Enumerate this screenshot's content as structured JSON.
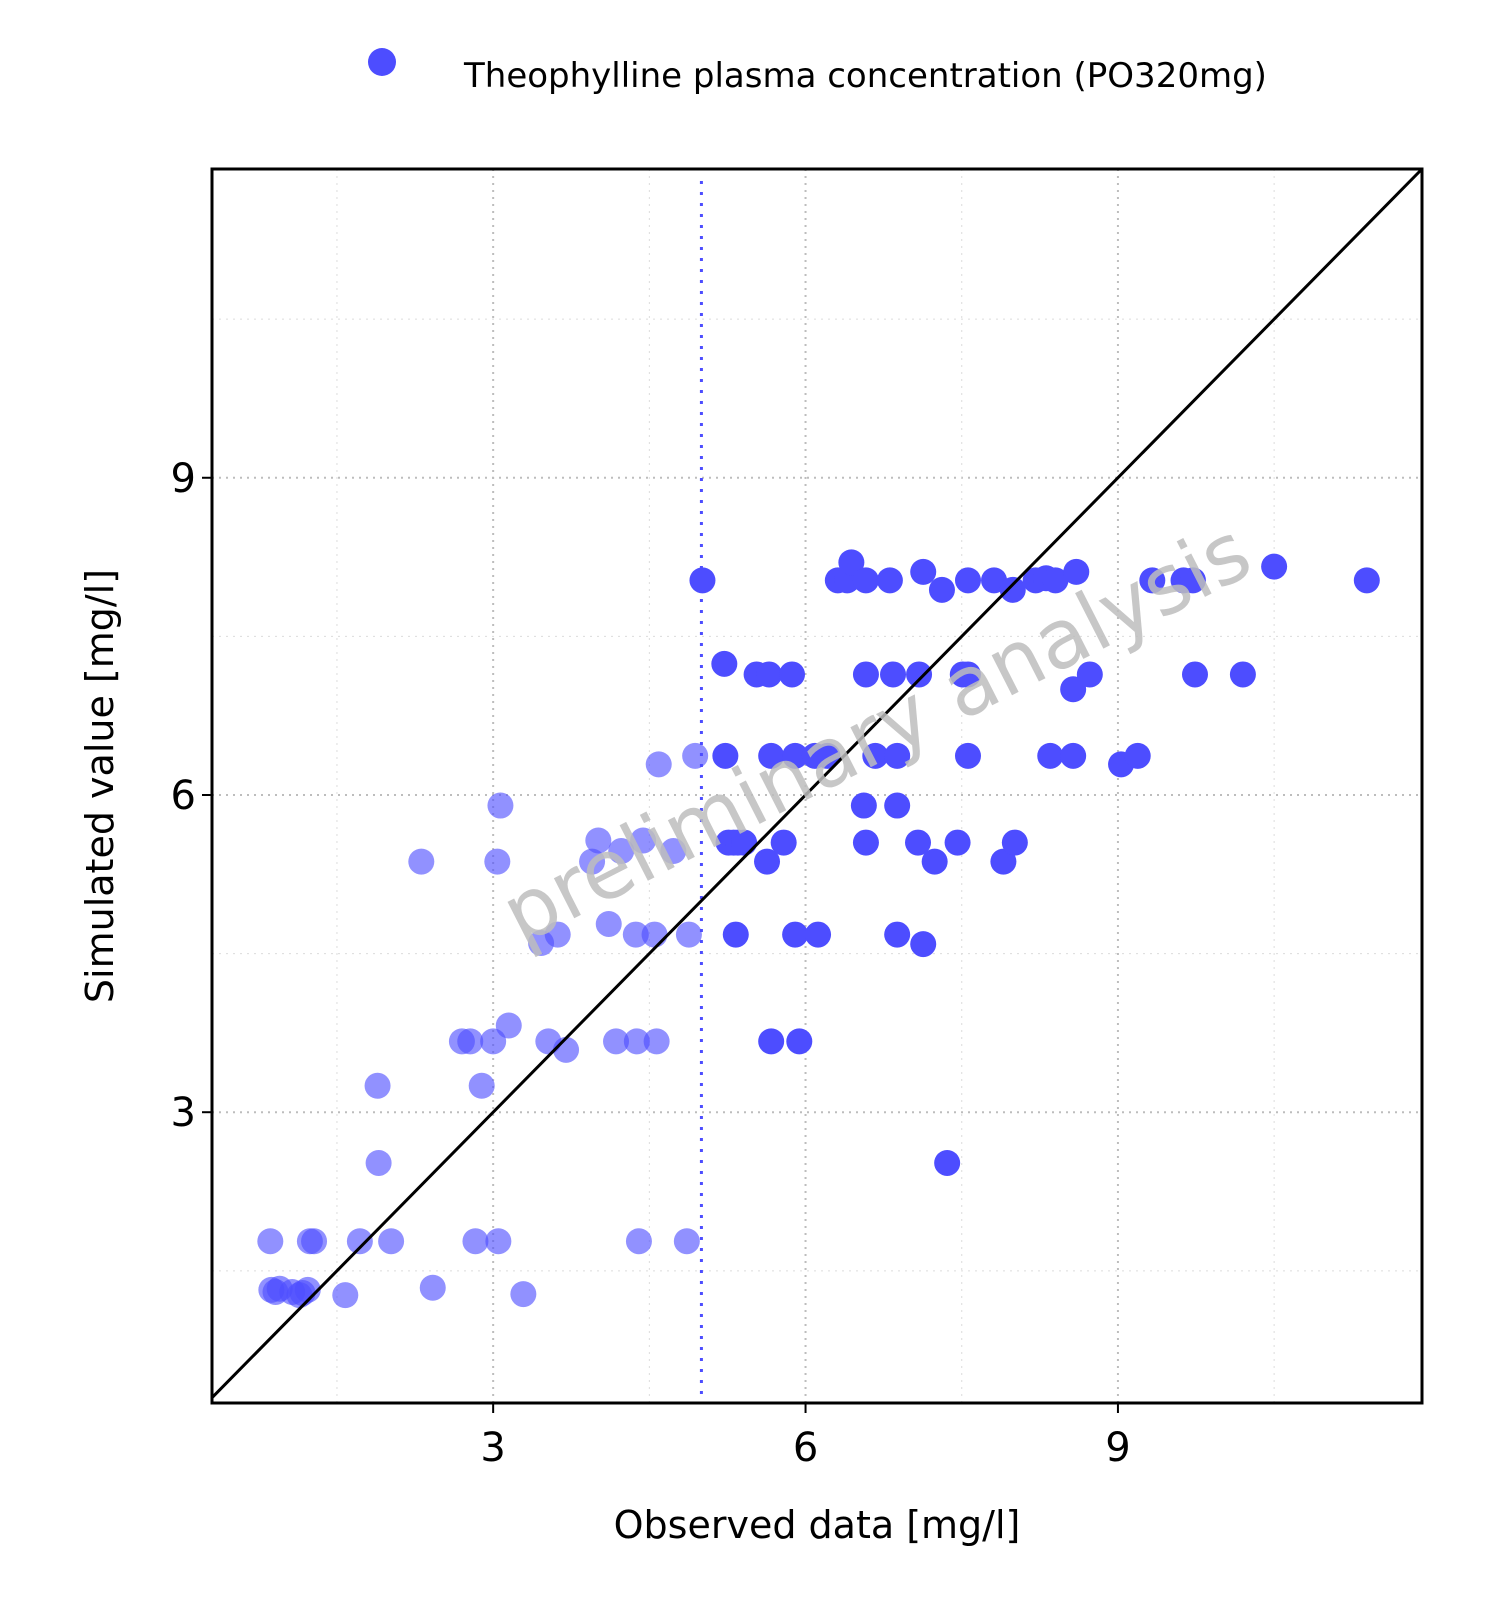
{
  "chart_data": {
    "type": "scatter",
    "title": "",
    "legend": {
      "position": "top",
      "entries": [
        {
          "label": "Theophylline plasma concentration (PO320mg)",
          "color": "#4d4dff",
          "marker": "circle"
        }
      ]
    },
    "xlabel": "Observed data [mg/l]",
    "ylabel": "Simulated value [mg/l]",
    "xlim": [
      0.3,
      11.92
    ],
    "ylim": [
      0.25,
      11.92
    ],
    "xticks": [
      3,
      6,
      9
    ],
    "yticks": [
      3,
      6,
      9
    ],
    "xtick_labels": [
      "3",
      "6",
      "9"
    ],
    "ytick_labels": [
      "3",
      "6",
      "9"
    ],
    "minor_gridlines": [
      1.5,
      4.5,
      7.5,
      10.5
    ],
    "grid": true,
    "identity_line": true,
    "lloq": {
      "x": 5.0,
      "style": "dotted",
      "color": "#4d4dff"
    },
    "watermark": "preliminary analysis",
    "marker_color": "#4d4dff",
    "series": [
      {
        "name": "Theophylline plasma concentration (PO320mg)",
        "below_lloq_opacity": 0.62,
        "points": [
          [
            0.86,
            1.78
          ],
          [
            0.87,
            1.32
          ],
          [
            0.91,
            1.3
          ],
          [
            0.95,
            1.33
          ],
          [
            1.07,
            1.3
          ],
          [
            1.14,
            1.27
          ],
          [
            1.17,
            1.29
          ],
          [
            1.22,
            1.32
          ],
          [
            1.24,
            1.78
          ],
          [
            1.28,
            1.78
          ],
          [
            1.58,
            1.27
          ],
          [
            1.72,
            1.78
          ],
          [
            1.9,
            2.52
          ],
          [
            2.02,
            1.78
          ],
          [
            2.31,
            5.37
          ],
          [
            2.42,
            1.34
          ],
          [
            1.89,
            3.25
          ],
          [
            2.7,
            3.67
          ],
          [
            2.78,
            3.67
          ],
          [
            2.83,
            1.78
          ],
          [
            2.89,
            3.25
          ],
          [
            3.0,
            3.67
          ],
          [
            3.04,
            5.37
          ],
          [
            3.05,
            1.78
          ],
          [
            3.07,
            5.9
          ],
          [
            3.15,
            3.82
          ],
          [
            3.29,
            1.28
          ],
          [
            3.46,
            4.6
          ],
          [
            3.53,
            3.67
          ],
          [
            3.62,
            4.68
          ],
          [
            3.7,
            3.59
          ],
          [
            3.95,
            5.37
          ],
          [
            4.01,
            5.57
          ],
          [
            4.11,
            4.78
          ],
          [
            4.18,
            3.67
          ],
          [
            4.23,
            5.47
          ],
          [
            4.37,
            4.68
          ],
          [
            4.38,
            3.67
          ],
          [
            4.4,
            1.78
          ],
          [
            4.44,
            5.57
          ],
          [
            4.55,
            4.68
          ],
          [
            4.57,
            3.67
          ],
          [
            4.59,
            6.29
          ],
          [
            4.73,
            5.47
          ],
          [
            4.88,
            4.68
          ],
          [
            4.86,
            1.78
          ],
          [
            4.94,
            6.37
          ],
          [
            5.01,
            8.03
          ],
          [
            5.22,
            7.24
          ],
          [
            5.23,
            6.37
          ],
          [
            5.26,
            5.55
          ],
          [
            5.31,
            5.55
          ],
          [
            5.35,
            5.55
          ],
          [
            5.41,
            5.55
          ],
          [
            5.33,
            4.68
          ],
          [
            5.53,
            7.14
          ],
          [
            5.65,
            7.14
          ],
          [
            5.63,
            5.37
          ],
          [
            5.67,
            3.67
          ],
          [
            5.67,
            6.37
          ],
          [
            5.79,
            5.55
          ],
          [
            5.87,
            7.14
          ],
          [
            5.9,
            4.68
          ],
          [
            5.9,
            6.37
          ],
          [
            5.94,
            3.67
          ],
          [
            6.09,
            6.37
          ],
          [
            6.12,
            4.68
          ],
          [
            6.21,
            6.37
          ],
          [
            6.31,
            8.03
          ],
          [
            6.4,
            8.03
          ],
          [
            6.44,
            8.2
          ],
          [
            6.56,
            5.9
          ],
          [
            6.58,
            5.55
          ],
          [
            6.58,
            7.14
          ],
          [
            6.58,
            8.03
          ],
          [
            6.67,
            6.37
          ],
          [
            6.81,
            8.03
          ],
          [
            6.84,
            7.14
          ],
          [
            6.88,
            4.68
          ],
          [
            6.88,
            5.9
          ],
          [
            6.88,
            6.37
          ],
          [
            7.08,
            5.55
          ],
          [
            7.09,
            7.14
          ],
          [
            7.13,
            4.59
          ],
          [
            7.13,
            8.11
          ],
          [
            7.24,
            5.37
          ],
          [
            7.31,
            7.94
          ],
          [
            7.36,
            2.52
          ],
          [
            7.46,
            5.55
          ],
          [
            7.51,
            7.14
          ],
          [
            7.56,
            7.14
          ],
          [
            7.56,
            6.37
          ],
          [
            7.56,
            8.03
          ],
          [
            7.81,
            8.03
          ],
          [
            7.9,
            5.37
          ],
          [
            7.99,
            7.94
          ],
          [
            8.01,
            5.55
          ],
          [
            8.21,
            8.03
          ],
          [
            8.31,
            8.05
          ],
          [
            8.35,
            6.37
          ],
          [
            8.4,
            8.03
          ],
          [
            8.57,
            7.0
          ],
          [
            8.57,
            6.37
          ],
          [
            8.6,
            8.11
          ],
          [
            8.73,
            7.14
          ],
          [
            9.03,
            6.29
          ],
          [
            9.19,
            6.37
          ],
          [
            9.33,
            8.03
          ],
          [
            9.63,
            8.03
          ],
          [
            9.72,
            8.03
          ],
          [
            9.74,
            7.14
          ],
          [
            10.2,
            7.14
          ],
          [
            10.5,
            8.16
          ],
          [
            11.39,
            8.03
          ]
        ]
      }
    ]
  }
}
